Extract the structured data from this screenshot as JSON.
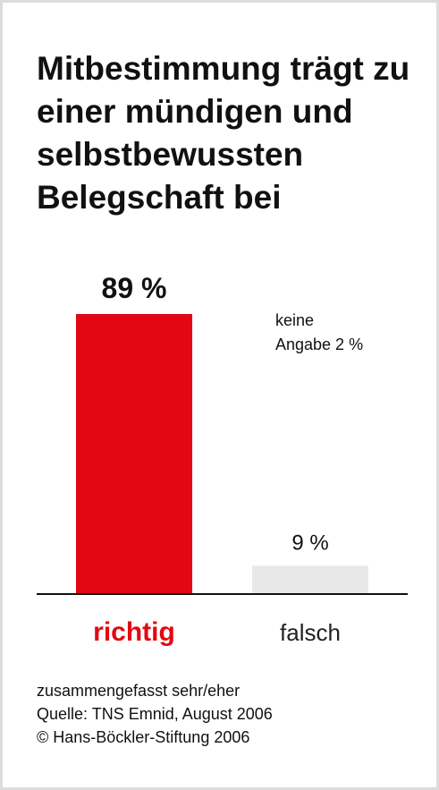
{
  "title": "Mitbestimmung trägt zu einer mündigen und selbstbewussten Belegschaft bei",
  "chart_data": {
    "type": "bar",
    "categories": [
      "richtig",
      "falsch"
    ],
    "values": [
      89,
      9
    ],
    "value_labels": [
      "89 %",
      "9 %"
    ],
    "colors": [
      "#e30613",
      "#e8e8e8"
    ],
    "category_label_colors": [
      "#e30613",
      "#222222"
    ],
    "annotation": [
      "keine",
      "Angabe 2 %"
    ],
    "ylim": [
      0,
      89
    ],
    "grid": false,
    "xlabel": "",
    "ylabel": ""
  },
  "footer": {
    "note": "zusammengefasst sehr/eher",
    "source": "Quelle: TNS Emnid, August 2006",
    "copyright": "© Hans-Böckler-Stiftung 2006"
  }
}
